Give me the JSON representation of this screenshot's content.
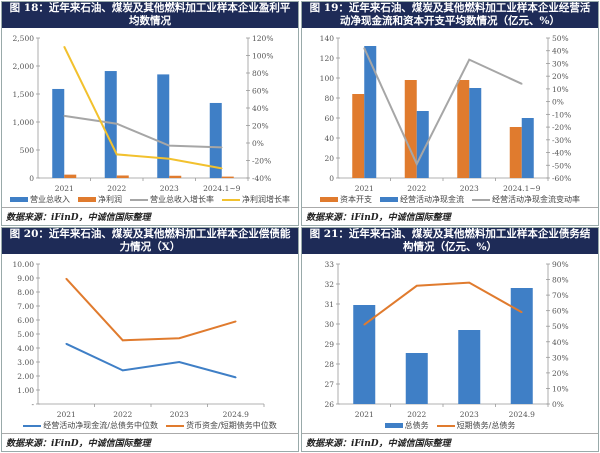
{
  "charts": [
    {
      "title": "图 18：近年来石油、煤炭及其他燃料加工业样本企业盈利平均数情况",
      "source": "数据来源：iFinD，中诚信国际整理"
    },
    {
      "title": "图 19：近年来石油、煤炭及其他燃料加工业样本企业经营活动净现金流和资本开支平均数情况（亿元、%）",
      "source": "数据来源：iFinD，中诚信国际整理"
    },
    {
      "title": "图 20：近年来石油、煤炭及其他燃料加工业样本企业偿债能力情况（X）",
      "source": "数据来源：iFinD，中诚信国际整理"
    },
    {
      "title": "图 21：近年来石油、煤炭及其他燃料加工业样本企业债务结构情况（亿元、%）",
      "source": "数据来源：iFinD，中诚信国际整理"
    }
  ],
  "chart_data": [
    {
      "type": "bar+line",
      "categories": [
        "2021",
        "2022",
        "2023",
        "2024.1~9"
      ],
      "y_left": {
        "range": [
          0,
          2500
        ],
        "tick_labels": [
          "0",
          "500",
          "1,000",
          "1,500",
          "2,000",
          "2,500"
        ]
      },
      "y_right": {
        "range": [
          -40,
          120
        ],
        "tick_labels": [
          "-40%",
          "-20%",
          "0%",
          "20%",
          "40%",
          "60%",
          "80%",
          "100%",
          "120%"
        ]
      },
      "series": [
        {
          "name": "营业总收入",
          "kind": "bar",
          "axis": "left",
          "color": "#3f7fc6",
          "values": [
            1590,
            1910,
            1850,
            1340
          ]
        },
        {
          "name": "净利润",
          "kind": "bar",
          "axis": "left",
          "color": "#e07b2e",
          "values": [
            60,
            45,
            40,
            25
          ]
        },
        {
          "name": "营业总收入增长率",
          "kind": "line",
          "axis": "right",
          "color": "#a6a6a6",
          "values": [
            31,
            22,
            -3,
            -5
          ]
        },
        {
          "name": "净利润增长率",
          "kind": "line",
          "axis": "right",
          "color": "#f2c12e",
          "values": [
            110,
            -13,
            -18,
            -29
          ]
        }
      ]
    },
    {
      "type": "bar+line",
      "categories": [
        "2021",
        "2022",
        "2023",
        "2024.1~9"
      ],
      "y_left": {
        "range": [
          0,
          140
        ],
        "tick_labels": [
          "0",
          "20",
          "40",
          "60",
          "80",
          "100",
          "120",
          "140"
        ]
      },
      "y_right": {
        "range": [
          -60,
          50
        ],
        "tick_labels": [
          "-60%",
          "-50%",
          "-40%",
          "-30%",
          "-20%",
          "-10%",
          "0%",
          "10%",
          "20%",
          "30%",
          "40%",
          "50%"
        ]
      },
      "series": [
        {
          "name": "资本开支",
          "kind": "bar",
          "axis": "left",
          "color": "#e07b2e",
          "values": [
            84,
            98,
            98,
            51
          ]
        },
        {
          "name": "经营活动净现金流",
          "kind": "bar",
          "axis": "left",
          "color": "#3f7fc6",
          "values": [
            132,
            67,
            90,
            60
          ]
        },
        {
          "name": "经营活动净现金流变动率",
          "kind": "line",
          "axis": "right",
          "color": "#a6a6a6",
          "values": [
            42,
            -49,
            33,
            14
          ]
        }
      ]
    },
    {
      "type": "line",
      "categories": [
        "2021",
        "2022",
        "2023",
        "2024.9"
      ],
      "y_left": {
        "range": [
          0,
          10
        ],
        "tick_labels": [
          "-",
          "1.00",
          "2.00",
          "3.00",
          "4.00",
          "5.00",
          "6.00",
          "7.00",
          "8.00",
          "9.00",
          "10.00"
        ]
      },
      "series": [
        {
          "name": "经营活动净现金流/总债务中位数",
          "kind": "line",
          "axis": "left",
          "color": "#3f7fc6",
          "values": [
            4.3,
            2.4,
            3.0,
            1.9
          ]
        },
        {
          "name": "货币资金/短期债务中位数",
          "kind": "line",
          "axis": "left",
          "color": "#e07b2e",
          "values": [
            8.95,
            4.55,
            4.7,
            5.9
          ]
        }
      ]
    },
    {
      "type": "bar+line",
      "categories": [
        "2021",
        "2022",
        "2023",
        "2024.9"
      ],
      "y_left": {
        "range": [
          26,
          33
        ],
        "tick_labels": [
          "26",
          "27",
          "28",
          "29",
          "30",
          "31",
          "32",
          "33"
        ]
      },
      "y_right": {
        "range": [
          0,
          90
        ],
        "tick_labels": [
          "0%",
          "10%",
          "20%",
          "30%",
          "40%",
          "50%",
          "60%",
          "70%",
          "80%",
          "90%"
        ]
      },
      "series": [
        {
          "name": "总债务",
          "kind": "bar",
          "axis": "left",
          "color": "#3f7fc6",
          "values": [
            30.95,
            28.55,
            29.7,
            31.8
          ]
        },
        {
          "name": "短期债务/总债务",
          "kind": "line",
          "axis": "right",
          "color": "#e07b2e",
          "values": [
            51,
            76,
            78,
            59
          ]
        }
      ]
    }
  ]
}
